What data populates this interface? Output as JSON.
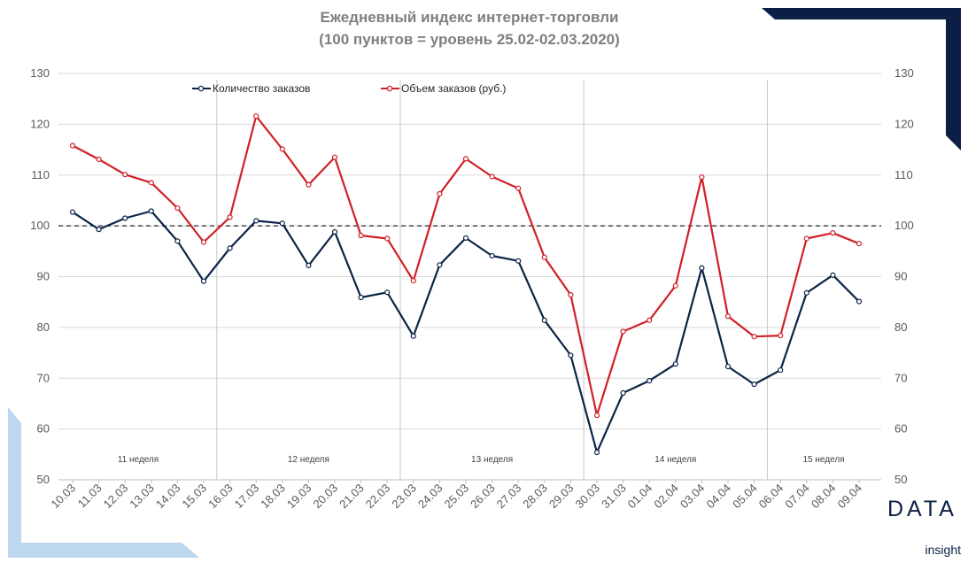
{
  "chart_data": {
    "type": "line",
    "title": "Ежедневный индекс интернет-торговли",
    "subtitle": "(100 пунктов = уровень 25.02-02.03.2020)",
    "categories": [
      "10.03",
      "11.03",
      "12.03",
      "13.03",
      "14.03",
      "15.03",
      "16.03",
      "17.03",
      "18.03",
      "19.03",
      "20.03",
      "21.03",
      "22.03",
      "23.03",
      "24.03",
      "25.03",
      "26.03",
      "27.03",
      "28.03",
      "29.03",
      "30.03",
      "31.03",
      "01.04",
      "02.04",
      "03.04",
      "04.04",
      "05.04",
      "06.04",
      "07.04",
      "08.04",
      "09.04"
    ],
    "series": [
      {
        "name": "Количество заказов",
        "color": "#0b2447",
        "values": [
          102.7,
          99.3,
          101.5,
          102.9,
          97.0,
          89.1,
          95.6,
          101.0,
          100.5,
          92.2,
          98.8,
          85.9,
          86.9,
          78.3,
          92.3,
          97.6,
          94.1,
          93.1,
          81.4,
          74.5,
          55.4,
          67.1,
          69.5,
          72.8,
          91.7,
          72.3,
          68.8,
          71.6,
          86.8,
          90.3,
          85.1
        ]
      },
      {
        "name": "Объем заказов (руб.)",
        "color": "#d02027",
        "values": [
          115.8,
          113.1,
          110.1,
          108.5,
          103.5,
          96.8,
          101.7,
          121.6,
          115.1,
          108.1,
          113.5,
          98.1,
          97.5,
          89.2,
          106.3,
          113.2,
          109.7,
          107.4,
          93.8,
          86.4,
          62.7,
          79.2,
          81.4,
          88.2,
          109.6,
          82.2,
          78.2,
          78.4,
          97.5,
          98.6,
          96.5
        ]
      }
    ],
    "ylim": [
      50,
      130
    ],
    "yticks": [
      50,
      60,
      70,
      80,
      90,
      100,
      110,
      120,
      130
    ],
    "reference_line": 100,
    "legend_position": "top",
    "grid": true,
    "weeks": [
      {
        "label": "11 неделя"
      },
      {
        "label": "12 неделя"
      },
      {
        "label": "13 неделя"
      },
      {
        "label": "14 неделя"
      },
      {
        "label": "15 неделя"
      }
    ]
  },
  "logo": {
    "line1": "DATA",
    "line2": "insight"
  },
  "colors": {
    "navy": "#0b1f44",
    "light_blue": "#bdd7ee",
    "grid": "#d9d9d9"
  }
}
